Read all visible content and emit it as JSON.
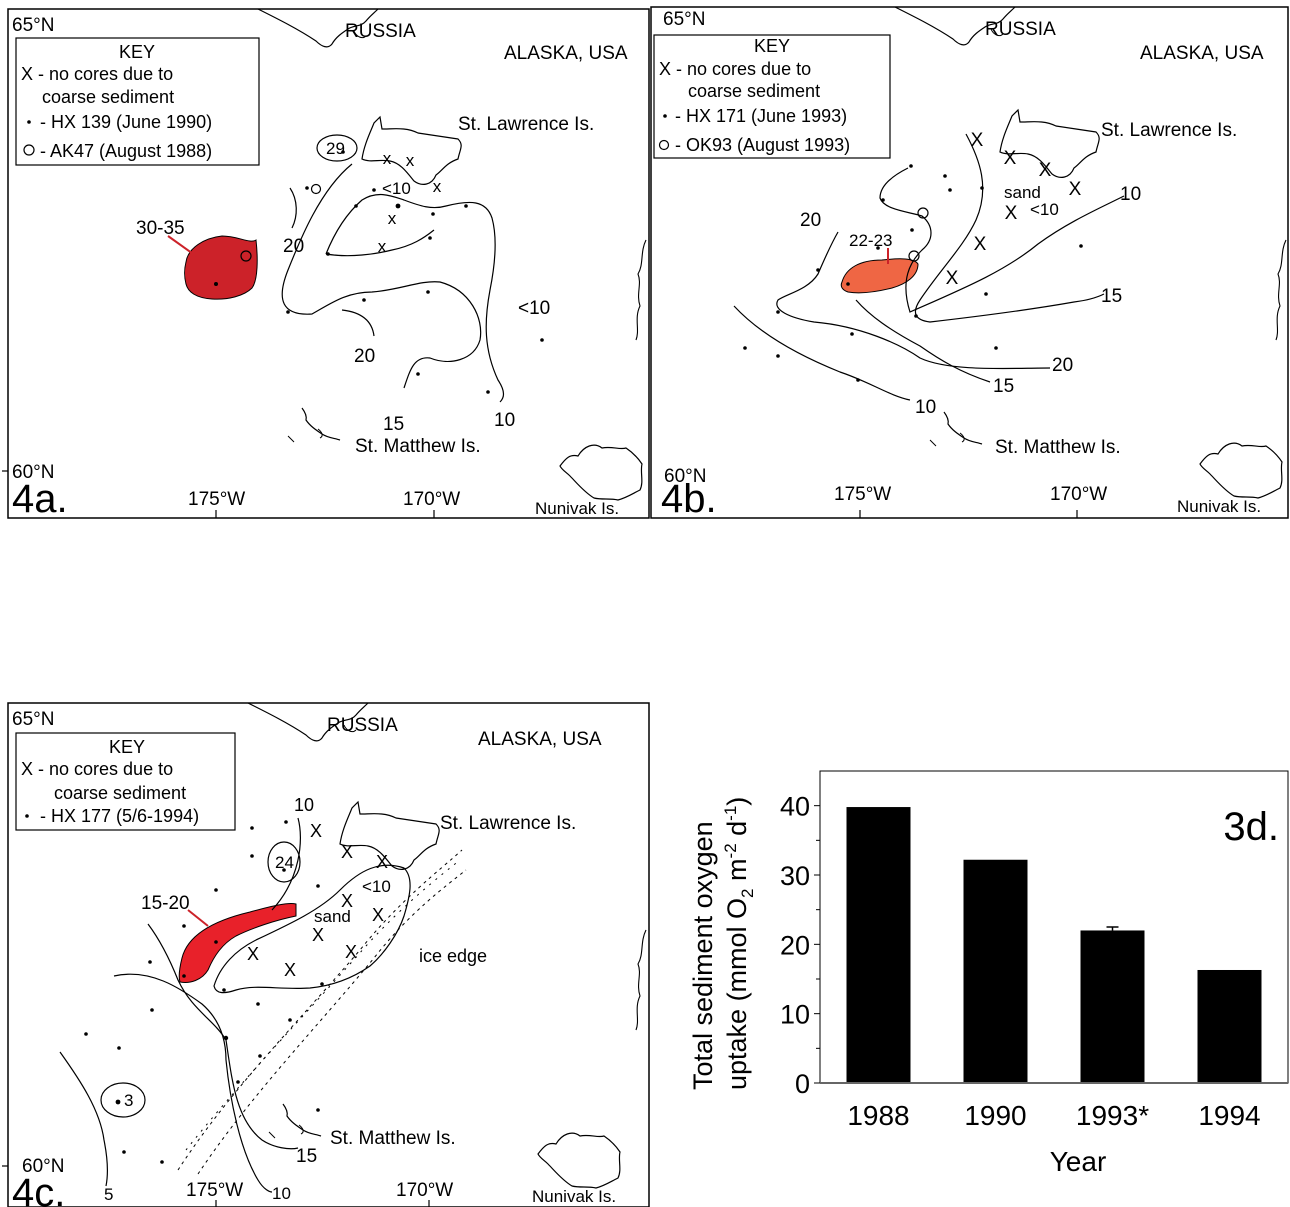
{
  "common": {
    "lat_north": "65°N",
    "lat_south": "60°N",
    "russia": "RUSSIA",
    "alaska": "ALASKA, USA",
    "st_lawrence": "St. Lawrence Is.",
    "st_matthew": "St. Matthew Is.",
    "nunivak": "Nunivak Is.",
    "lon_175": "175°W",
    "lon_170": "170°W",
    "key_title": "KEY",
    "key_x": "X - no cores due to",
    "key_x2": "coarse sediment",
    "colors": {
      "high_1988": "#cc2229",
      "high_1993": "#ef6644",
      "high_1994": "#e8212a"
    }
  },
  "panel_a": {
    "tag": "4a.",
    "key_dot": "- HX 139 (June 1990)",
    "key_circle": "- AK47  (August 1988)",
    "labels": {
      "v29": "29",
      "v30_35": "30-35",
      "lt10a": "<10",
      "v20a": "20",
      "v20b": "20",
      "lt10b": "<10",
      "v15": "15",
      "v10": "10"
    }
  },
  "panel_b": {
    "tag": "4b.",
    "key_dot": "- HX 171 (June 1993)",
    "key_circle": "- OK93 (August 1993)",
    "labels": {
      "v22_23": "22-23",
      "v20a": "20",
      "sand": "sand",
      "lt10": "<10",
      "v10a": "10",
      "v15a": "15",
      "v20b": "20",
      "v15b": "15",
      "v10b": "10"
    }
  },
  "panel_c": {
    "tag": "4c.",
    "key_dot": "- HX 177 (5/6-1994)",
    "labels": {
      "v10a": "10",
      "v24": "24",
      "lt10": "<10",
      "sand": "sand",
      "v15_20": "15-20",
      "ice_edge": "ice edge",
      "v3": "3",
      "v15": "15",
      "v10b": "10",
      "v5": "5"
    }
  },
  "chart_data": {
    "type": "bar",
    "title": "3d.",
    "categories": [
      "1988",
      "1990",
      "1993*",
      "1994"
    ],
    "values": [
      39.8,
      32.2,
      22.0,
      16.3
    ],
    "error": [
      0,
      0,
      0.5,
      0
    ],
    "xlabel": "Year",
    "ylabel_line1": "Total sediment oxygen",
    "ylabel_line2": "uptake (mmol O",
    "ylabel_sub": "2",
    "ylabel_mid": " m",
    "ylabel_sup1": "-2",
    "ylabel_end": " d",
    "ylabel_sup2": "-1",
    "ylabel_close": ")",
    "ylim": [
      0,
      45
    ],
    "yticks": [
      "0",
      "10",
      "20",
      "30",
      "40"
    ],
    "ytick_values": [
      0,
      10,
      20,
      30,
      40
    ],
    "bar_color": "#000000"
  }
}
